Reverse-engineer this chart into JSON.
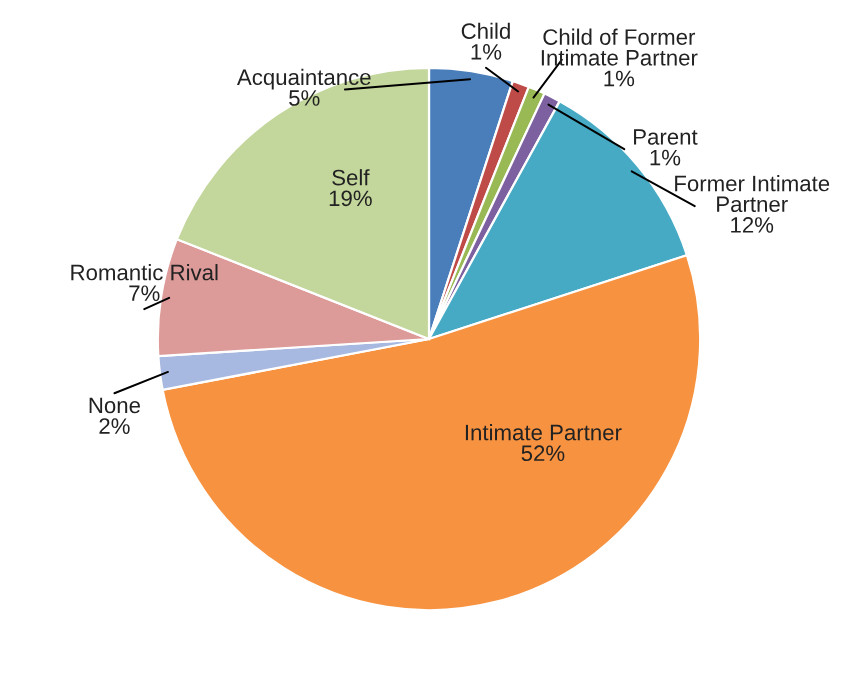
{
  "chart_data": {
    "type": "pie",
    "categories": [
      "Acquaintance",
      "Child",
      "Child of Former\nIntimate Partner",
      "Parent",
      "Former Intimate\nPartner",
      "Intimate Partner",
      "None",
      "Romantic Rival",
      "Self"
    ],
    "values": [
      5,
      1,
      1,
      1,
      12,
      52,
      2,
      7,
      19
    ],
    "value_labels": [
      "5%",
      "1%",
      "1%",
      "1%",
      "12%",
      "52%",
      "2%",
      "7%",
      "19%"
    ],
    "colors": [
      "#4a7ebb",
      "#be4b48",
      "#98b954",
      "#7d60a0",
      "#46aac5",
      "#f69240",
      "#a7b9e0",
      "#dc9a98",
      "#c3d69b"
    ]
  }
}
